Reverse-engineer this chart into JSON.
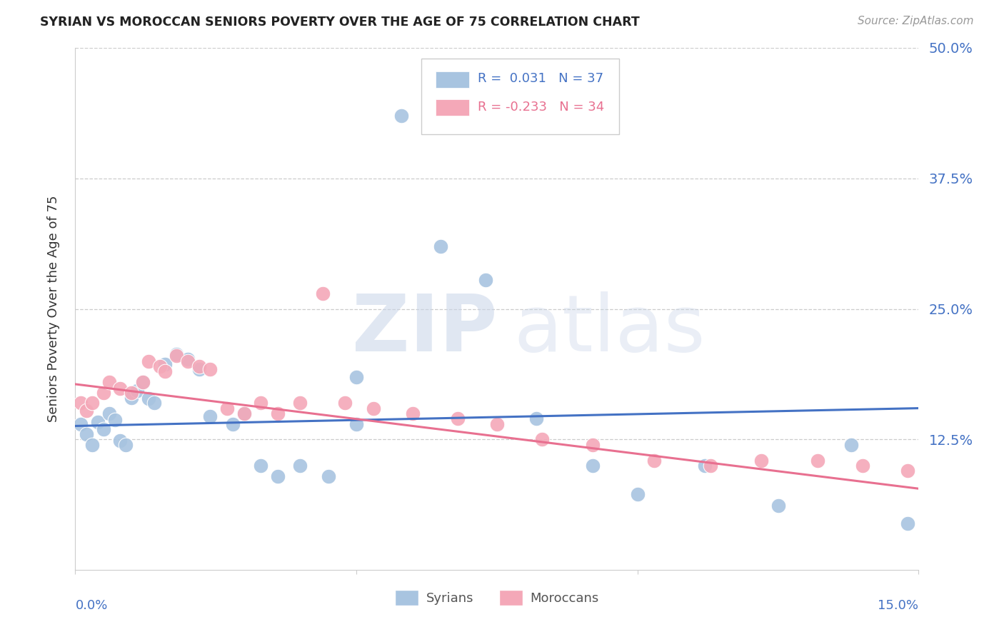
{
  "title": "SYRIAN VS MOROCCAN SENIORS POVERTY OVER THE AGE OF 75 CORRELATION CHART",
  "source": "Source: ZipAtlas.com",
  "ylabel": "Seniors Poverty Over the Age of 75",
  "xlim": [
    0.0,
    0.15
  ],
  "ylim": [
    0.0,
    0.5
  ],
  "yticks": [
    0.125,
    0.25,
    0.375,
    0.5
  ],
  "xticks": [
    0.0,
    0.05,
    0.1,
    0.15
  ],
  "syrian_R": 0.031,
  "syrian_N": 37,
  "moroccan_R": -0.233,
  "moroccan_N": 34,
  "syrian_color": "#a8c4e0",
  "moroccan_color": "#f4a8b8",
  "syrian_line_color": "#4472c4",
  "moroccan_line_color": "#e87090",
  "background_color": "#ffffff",
  "syrians_x": [
    0.001,
    0.002,
    0.003,
    0.004,
    0.005,
    0.006,
    0.007,
    0.008,
    0.009,
    0.01,
    0.011,
    0.012,
    0.013,
    0.014,
    0.016,
    0.018,
    0.02,
    0.022,
    0.024,
    0.028,
    0.03,
    0.033,
    0.036,
    0.04,
    0.045,
    0.05,
    0.058,
    0.065,
    0.073,
    0.082,
    0.092,
    0.1,
    0.112,
    0.125,
    0.138,
    0.148,
    0.05
  ],
  "syrians_y": [
    0.14,
    0.13,
    0.12,
    0.142,
    0.135,
    0.15,
    0.144,
    0.124,
    0.12,
    0.165,
    0.172,
    0.18,
    0.164,
    0.16,
    0.197,
    0.207,
    0.202,
    0.192,
    0.147,
    0.14,
    0.15,
    0.1,
    0.09,
    0.1,
    0.09,
    0.14,
    0.435,
    0.31,
    0.278,
    0.145,
    0.1,
    0.073,
    0.1,
    0.062,
    0.12,
    0.045,
    0.185
  ],
  "moroccans_x": [
    0.001,
    0.002,
    0.003,
    0.005,
    0.006,
    0.008,
    0.01,
    0.012,
    0.013,
    0.015,
    0.016,
    0.018,
    0.02,
    0.022,
    0.024,
    0.027,
    0.03,
    0.033,
    0.036,
    0.04,
    0.044,
    0.048,
    0.053,
    0.06,
    0.068,
    0.075,
    0.083,
    0.092,
    0.103,
    0.113,
    0.122,
    0.132,
    0.14,
    0.148
  ],
  "moroccans_y": [
    0.16,
    0.153,
    0.16,
    0.17,
    0.18,
    0.174,
    0.17,
    0.18,
    0.2,
    0.195,
    0.19,
    0.205,
    0.2,
    0.195,
    0.192,
    0.155,
    0.15,
    0.16,
    0.15,
    0.16,
    0.265,
    0.16,
    0.155,
    0.15,
    0.145,
    0.14,
    0.125,
    0.12,
    0.105,
    0.1,
    0.105,
    0.105,
    0.1,
    0.095
  ],
  "syrian_trendline_x": [
    0.0,
    0.15
  ],
  "syrian_trendline_y": [
    0.138,
    0.155
  ],
  "moroccan_trendline_x": [
    0.0,
    0.15
  ],
  "moroccan_trendline_y": [
    0.178,
    0.078
  ]
}
